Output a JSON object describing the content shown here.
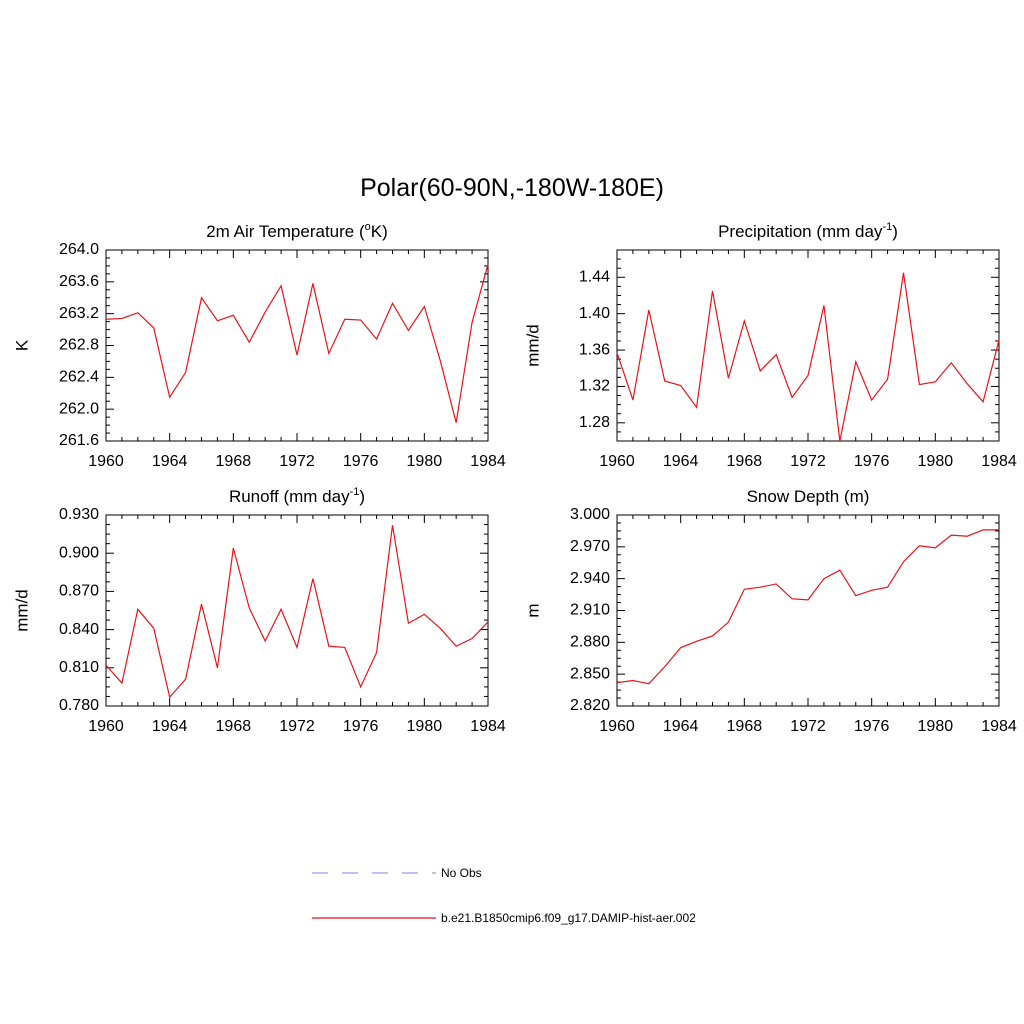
{
  "figure": {
    "title": "Polar(60-90N,-180W-180E)",
    "line_color": "#e8141a",
    "obs_color": "#9999ee"
  },
  "legend": {
    "items": [
      {
        "label": "No Obs",
        "style": "dashed",
        "color": "#9999ee"
      },
      {
        "label": "b.e21.B1850cmip6.f09_g17.DAMIP-hist-aer.002",
        "style": "solid",
        "color": "#e8141a"
      }
    ]
  },
  "chart_data": [
    {
      "type": "line",
      "title": "2m Air Temperature (",
      "title_sup": "o",
      "title_after": "K)",
      "ylabel": "K",
      "xlim": [
        1960,
        1984
      ],
      "ylim": [
        261.6,
        264.0
      ],
      "x_ticks": [
        "1960",
        "1964",
        "1968",
        "1972",
        "1976",
        "1980",
        "1984"
      ],
      "y_ticks": [
        "261.6",
        "262.0",
        "262.4",
        "262.8",
        "263.2",
        "263.6",
        "264.0"
      ],
      "series": [
        {
          "x": [
            1960,
            1961,
            1962,
            1963,
            1964,
            1965,
            1966,
            1967,
            1968,
            1969,
            1970,
            1971,
            1972,
            1973,
            1974,
            1975,
            1976,
            1977,
            1978,
            1979,
            1980,
            1981,
            1982,
            1983,
            1984
          ],
          "values": [
            263.13,
            263.14,
            263.21,
            263.02,
            262.15,
            262.46,
            263.4,
            263.11,
            263.18,
            262.84,
            263.22,
            263.55,
            262.68,
            263.58,
            262.7,
            263.13,
            263.12,
            262.88,
            263.33,
            262.99,
            263.29,
            262.61,
            261.83,
            263.09,
            263.82
          ]
        }
      ]
    },
    {
      "type": "line",
      "title": "Precipitation (mm day",
      "title_sup": "-1",
      "title_after": ")",
      "ylabel": "mm/d",
      "xlim": [
        1960,
        1984
      ],
      "ylim": [
        1.26,
        1.47
      ],
      "x_ticks": [
        "1960",
        "1964",
        "1968",
        "1972",
        "1976",
        "1980",
        "1984"
      ],
      "y_ticks": [
        "1.28",
        "1.32",
        "1.36",
        "1.40",
        "1.44"
      ],
      "series": [
        {
          "x": [
            1960,
            1961,
            1962,
            1963,
            1964,
            1965,
            1966,
            1967,
            1968,
            1969,
            1970,
            1971,
            1972,
            1973,
            1974,
            1975,
            1976,
            1977,
            1978,
            1979,
            1980,
            1981,
            1982,
            1983,
            1984
          ],
          "values": [
            1.357,
            1.305,
            1.404,
            1.326,
            1.321,
            1.297,
            1.425,
            1.329,
            1.392,
            1.337,
            1.355,
            1.308,
            1.332,
            1.409,
            1.26,
            1.347,
            1.305,
            1.328,
            1.445,
            1.322,
            1.325,
            1.346,
            1.323,
            1.303,
            1.371
          ]
        }
      ]
    },
    {
      "type": "line",
      "title": "Runoff (mm day",
      "title_sup": "-1",
      "title_after": ")",
      "ylabel": "mm/d",
      "xlim": [
        1960,
        1984
      ],
      "ylim": [
        0.78,
        0.93
      ],
      "x_ticks": [
        "1960",
        "1964",
        "1968",
        "1972",
        "1976",
        "1980",
        "1984"
      ],
      "y_ticks": [
        "0.780",
        "0.810",
        "0.840",
        "0.870",
        "0.900",
        "0.930"
      ],
      "series": [
        {
          "x": [
            1960,
            1961,
            1962,
            1963,
            1964,
            1965,
            1966,
            1967,
            1968,
            1969,
            1970,
            1971,
            1972,
            1973,
            1974,
            1975,
            1976,
            1977,
            1978,
            1979,
            1980,
            1981,
            1982,
            1983,
            1984
          ],
          "values": [
            0.812,
            0.798,
            0.856,
            0.841,
            0.787,
            0.801,
            0.86,
            0.81,
            0.904,
            0.857,
            0.831,
            0.856,
            0.826,
            0.88,
            0.827,
            0.826,
            0.795,
            0.822,
            0.922,
            0.845,
            0.852,
            0.841,
            0.827,
            0.833,
            0.846
          ]
        }
      ]
    },
    {
      "type": "line",
      "title": "Snow Depth (m)",
      "title_sup": "",
      "title_after": "",
      "ylabel": "m",
      "xlim": [
        1960,
        1984
      ],
      "ylim": [
        2.82,
        3.0
      ],
      "x_ticks": [
        "1960",
        "1964",
        "1968",
        "1972",
        "1976",
        "1980",
        "1984"
      ],
      "y_ticks": [
        "2.820",
        "2.850",
        "2.880",
        "2.910",
        "2.940",
        "2.970",
        "3.000"
      ],
      "series": [
        {
          "x": [
            1960,
            1961,
            1962,
            1963,
            1964,
            1965,
            1966,
            1967,
            1968,
            1969,
            1970,
            1971,
            1972,
            1973,
            1974,
            1975,
            1976,
            1977,
            1978,
            1979,
            1980,
            1981,
            1982,
            1983,
            1984
          ],
          "values": [
            2.842,
            2.844,
            2.841,
            2.857,
            2.875,
            2.881,
            2.886,
            2.899,
            2.93,
            2.932,
            2.935,
            2.921,
            2.92,
            2.94,
            2.948,
            2.924,
            2.929,
            2.932,
            2.956,
            2.971,
            2.969,
            2.981,
            2.98,
            2.986,
            2.986
          ]
        }
      ]
    }
  ]
}
